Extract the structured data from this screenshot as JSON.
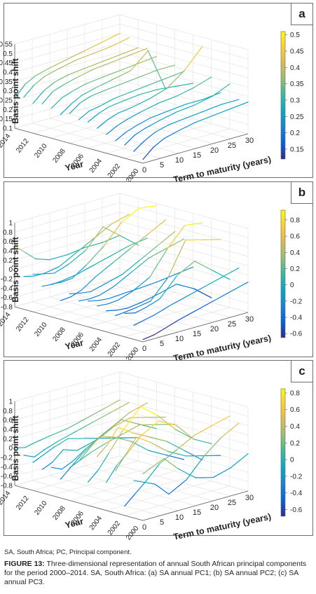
{
  "figure": {
    "footnote": "SA, South Africa; PC, Principal component.",
    "caption_label": "FIGURE 13:",
    "caption_text": " Three-dimensional representation of annual South African principal components for the period 2000–2014. SA, South Africa: (a) SA annual PC1; (b) SA annual PC2; (c) SA annual PC3."
  },
  "chart_data": [
    {
      "panel_label": "a",
      "type": "line",
      "zlabel": "Basis point shift",
      "ylabel": "Year",
      "xlabel": "Term to maturity (years)",
      "x_ticks": [
        "0",
        "5",
        "10",
        "15",
        "20",
        "25",
        "30"
      ],
      "y_ticks": [
        "2000",
        "2002",
        "2004",
        "2006",
        "2008",
        "2010",
        "2012",
        "2014"
      ],
      "z_ticks": [
        "0.1",
        "0.15",
        "0.2",
        "0.25",
        "0.3",
        "0.35",
        "0.4",
        "0.45",
        "0.5",
        "0.55"
      ],
      "zlim": [
        0.1,
        0.55
      ],
      "colorbar_ticks": [
        "0.15",
        "0.2",
        "0.25",
        "0.3",
        "0.35",
        "0.4",
        "0.45",
        "0.5"
      ],
      "colorbar_range": [
        0.12,
        0.51
      ],
      "colormap": [
        "#352a87",
        "#0363e1",
        "#1485d4",
        "#06a7c6",
        "#38b99e",
        "#92bf73",
        "#d9ba56",
        "#fcce2e",
        "#f9fb0e"
      ],
      "grid": true,
      "x": [
        0,
        3,
        6,
        10,
        15,
        20,
        25,
        30
      ],
      "series": [
        {
          "year": 2000,
          "values": [
            0.12,
            0.17,
            0.2,
            0.22,
            0.24,
            0.25,
            0.26,
            0.27
          ]
        },
        {
          "year": 2001,
          "values": [
            0.15,
            0.19,
            0.22,
            0.24,
            0.25,
            0.26,
            0.27,
            0.27
          ]
        },
        {
          "year": 2002,
          "values": [
            0.17,
            0.21,
            0.23,
            0.25,
            0.27,
            0.28,
            0.3,
            0.34
          ]
        },
        {
          "year": 2003,
          "values": [
            0.18,
            0.21,
            0.23,
            0.25,
            0.26,
            0.27,
            0.27,
            0.28
          ]
        },
        {
          "year": 2004,
          "values": [
            0.2,
            0.23,
            0.25,
            0.27,
            0.29,
            0.3,
            0.32,
            0.35
          ]
        },
        {
          "year": 2005,
          "values": [
            0.22,
            0.25,
            0.27,
            0.28,
            0.3,
            0.33,
            0.4,
            0.5
          ]
        },
        {
          "year": 2006,
          "values": [
            0.24,
            0.27,
            0.29,
            0.3,
            0.31,
            0.31,
            0.3,
            0.29
          ]
        },
        {
          "year": 2007,
          "values": [
            0.24,
            0.27,
            0.28,
            0.3,
            0.31,
            0.32,
            0.33,
            0.34
          ]
        },
        {
          "year": 2008,
          "values": [
            0.26,
            0.3,
            0.32,
            0.33,
            0.34,
            0.35,
            0.36,
            0.36
          ]
        },
        {
          "year": 2009,
          "values": [
            0.24,
            0.28,
            0.31,
            0.33,
            0.35,
            0.37,
            0.45,
            0.22
          ]
        },
        {
          "year": 2010,
          "values": [
            0.26,
            0.3,
            0.32,
            0.34,
            0.35,
            0.36,
            0.37,
            0.38
          ]
        },
        {
          "year": 2011,
          "values": [
            0.27,
            0.32,
            0.34,
            0.36,
            0.38,
            0.39,
            0.4,
            0.41
          ]
        },
        {
          "year": 2012,
          "values": [
            0.26,
            0.31,
            0.34,
            0.36,
            0.37,
            0.38,
            0.39,
            0.4
          ]
        },
        {
          "year": 2013,
          "values": [
            0.28,
            0.33,
            0.36,
            0.38,
            0.4,
            0.41,
            0.42,
            0.44
          ]
        },
        {
          "year": 2014,
          "values": [
            0.26,
            0.32,
            0.35,
            0.37,
            0.39,
            0.41,
            0.43,
            0.45
          ]
        }
      ]
    },
    {
      "panel_label": "b",
      "type": "line",
      "zlabel": "Basis point shift",
      "ylabel": "Year",
      "xlabel": "Term to maturity (years)",
      "x_ticks": [
        "0",
        "5",
        "10",
        "15",
        "20",
        "25",
        "30"
      ],
      "y_ticks": [
        "2000",
        "2002",
        "2004",
        "2006",
        "2008",
        "2010",
        "2012",
        "2014"
      ],
      "z_ticks": [
        "-0.8",
        "-0.6",
        "-0.4",
        "-0.2",
        "0",
        "0.2",
        "0.4",
        "0.6",
        "0.8",
        "1"
      ],
      "zlim": [
        -0.8,
        1.0
      ],
      "colorbar_ticks": [
        "-0.6",
        "-0.4",
        "-0.2",
        "0",
        "0.2",
        "0.4",
        "0.6",
        "0.8"
      ],
      "colorbar_range": [
        -0.65,
        0.92
      ],
      "colormap": [
        "#352a87",
        "#0363e1",
        "#1485d4",
        "#06a7c6",
        "#38b99e",
        "#92bf73",
        "#d9ba56",
        "#fcce2e",
        "#f9fb0e"
      ],
      "grid": true,
      "x": [
        0,
        3,
        6,
        10,
        15,
        20,
        25,
        30
      ],
      "series": [
        {
          "year": 2000,
          "values": [
            -0.75,
            -0.72,
            -0.65,
            -0.55,
            -0.45,
            -0.35,
            -0.25,
            -0.15
          ]
        },
        {
          "year": 2001,
          "values": [
            -0.5,
            -0.45,
            -0.4,
            -0.3,
            -0.2,
            -0.1,
            0.0,
            0.1
          ]
        },
        {
          "year": 2002,
          "values": [
            -0.3,
            -0.35,
            -0.3,
            -0.2,
            0.2,
            0.4,
            0.1,
            -0.2
          ]
        },
        {
          "year": 2003,
          "values": [
            -0.4,
            -0.38,
            -0.35,
            -0.3,
            0.1,
            0.8,
            0.7,
            0.6
          ]
        },
        {
          "year": 2004,
          "values": [
            -0.35,
            -0.4,
            -0.42,
            -0.38,
            -0.3,
            -0.2,
            -0.4,
            -0.7
          ]
        },
        {
          "year": 2005,
          "values": [
            -0.3,
            -0.32,
            -0.3,
            -0.2,
            0.0,
            0.5,
            0.9,
            0.85
          ]
        },
        {
          "year": 2006,
          "values": [
            -0.25,
            -0.3,
            -0.32,
            -0.3,
            -0.28,
            -0.25,
            -0.2,
            -0.15
          ]
        },
        {
          "year": 2007,
          "values": [
            -0.3,
            -0.32,
            -0.3,
            -0.2,
            0.0,
            0.2,
            0.3,
            0.4
          ]
        },
        {
          "year": 2008,
          "values": [
            -0.2,
            -0.25,
            -0.28,
            -0.2,
            -0.1,
            0.1,
            0.3,
            0.5
          ]
        },
        {
          "year": 2009,
          "values": [
            -0.4,
            -0.38,
            -0.3,
            -0.1,
            0.1,
            0.3,
            0.5,
            0.7
          ]
        },
        {
          "year": 2010,
          "values": [
            -0.1,
            -0.12,
            -0.1,
            0.1,
            0.4,
            0.8,
            1.0,
            0.95
          ]
        },
        {
          "year": 2011,
          "values": [
            -0.2,
            -0.22,
            -0.2,
            -0.15,
            -0.05,
            0.05,
            0.15,
            0.2
          ]
        },
        {
          "year": 2012,
          "values": [
            0.0,
            -0.05,
            -0.1,
            0.0,
            0.2,
            0.6,
            0.3,
            0.0
          ]
        },
        {
          "year": 2013,
          "values": [
            -0.1,
            -0.15,
            -0.15,
            -0.1,
            0.1,
            0.3,
            0.5,
            0.6
          ]
        },
        {
          "year": 2014,
          "values": [
            0.5,
            0.3,
            0.1,
            0.0,
            0.0,
            0.05,
            0.05,
            0.1
          ]
        }
      ]
    },
    {
      "panel_label": "c",
      "type": "line",
      "zlabel": "Basis point shift",
      "ylabel": "Year",
      "xlabel": "Term to maturity (years)",
      "x_ticks": [
        "0",
        "5",
        "10",
        "15",
        "20",
        "25",
        "30"
      ],
      "y_ticks": [
        "2000",
        "2002",
        "2004",
        "2006",
        "2008",
        "2010",
        "2012",
        "2014"
      ],
      "z_ticks": [
        "-0.8",
        "-0.6",
        "-0.4",
        "-0.2",
        "0",
        "0.2",
        "0.4",
        "0.6",
        "0.8",
        "1"
      ],
      "zlim": [
        -0.8,
        1.0
      ],
      "colorbar_ticks": [
        "-0.6",
        "-0.4",
        "-0.2",
        "0",
        "0.2",
        "0.4",
        "0.6",
        "0.8"
      ],
      "colorbar_range": [
        -0.68,
        0.85
      ],
      "colormap": [
        "#352a87",
        "#0363e1",
        "#1485d4",
        "#06a7c6",
        "#38b99e",
        "#92bf73",
        "#d9ba56",
        "#fcce2e",
        "#f9fb0e"
      ],
      "grid": true,
      "x": [
        0,
        3,
        6,
        10,
        15,
        20,
        25,
        30
      ],
      "series": [
        {
          "year": 2000,
          "values": [
            0.2,
            0.3,
            0.4,
            0.1,
            -0.2,
            -0.3,
            -0.2,
            0.0
          ]
        },
        {
          "year": 2001,
          "values": [
            0.0,
            -0.1,
            -0.2,
            -0.5,
            -0.3,
            0.1,
            0.4,
            0.6
          ]
        },
        {
          "year": 2002,
          "values": [
            -0.6,
            -0.4,
            -0.2,
            0.1,
            0.3,
            0.5,
            0.6,
            0.7
          ]
        },
        {
          "year": 2003,
          "values": [
            0.1,
            0.4,
            0.7,
            0.5,
            0.2,
            0.0,
            -0.1,
            -0.2
          ]
        },
        {
          "year": 2004,
          "values": [
            -0.2,
            0.1,
            0.3,
            0.6,
            0.8,
            0.6,
            0.2,
            0.0
          ]
        },
        {
          "year": 2005,
          "values": [
            0.3,
            0.5,
            0.8,
            0.6,
            0.4,
            0.2,
            -0.1,
            -0.4
          ]
        },
        {
          "year": 2006,
          "values": [
            -0.3,
            -0.1,
            0.2,
            0.6,
            1.0,
            0.7,
            0.3,
            0.0
          ]
        },
        {
          "year": 2007,
          "values": [
            0.1,
            0.3,
            0.5,
            0.4,
            0.2,
            -0.1,
            -0.3,
            -0.5
          ]
        },
        {
          "year": 2008,
          "values": [
            -0.1,
            0.0,
            0.1,
            0.2,
            0.3,
            0.4,
            0.3,
            0.2
          ]
        },
        {
          "year": 2009,
          "values": [
            -0.4,
            -0.2,
            0.0,
            0.2,
            0.4,
            0.5,
            0.4,
            0.3
          ]
        },
        {
          "year": 2010,
          "values": [
            -0.2,
            -0.3,
            -0.2,
            0.0,
            0.2,
            0.4,
            0.2,
            0.0
          ]
        },
        {
          "year": 2011,
          "values": [
            -0.3,
            -0.2,
            0.0,
            -0.1,
            0.0,
            0.2,
            0.4,
            0.5
          ]
        },
        {
          "year": 2012,
          "values": [
            -0.2,
            -0.1,
            0.0,
            0.1,
            0.0,
            -0.1,
            -0.2,
            -0.3
          ]
        },
        {
          "year": 2013,
          "values": [
            -0.1,
            -0.2,
            -0.1,
            0.0,
            0.1,
            0.2,
            0.3,
            0.4
          ]
        },
        {
          "year": 2014,
          "values": [
            0.0,
            -0.05,
            0.0,
            0.05,
            0.1,
            0.2,
            0.3,
            0.4
          ]
        }
      ]
    }
  ]
}
